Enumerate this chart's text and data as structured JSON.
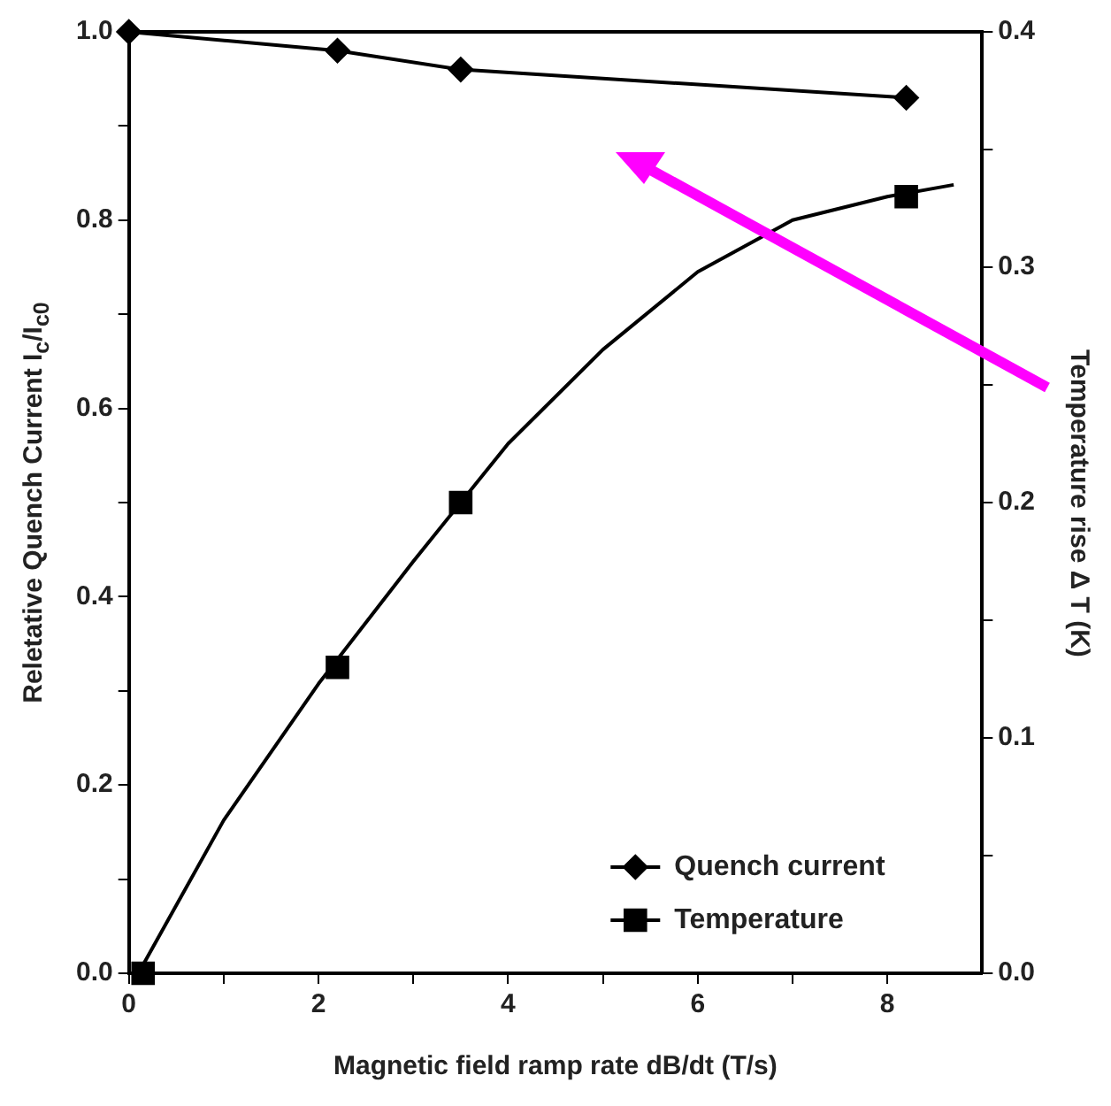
{
  "chart_data": {
    "type": "line",
    "xlabel": "Magnetic field ramp rate dB/dt (T/s)",
    "ylabel": "Reletative Quench Current I$_{c}$/I$_{c0}$",
    "y2label": "Temperature rise Δ T (K)",
    "xlim": [
      0,
      9
    ],
    "xticks": [
      0,
      {
        "value": 1,
        "label": null
      },
      2,
      {
        "value": 3,
        "label": null
      },
      4,
      {
        "value": 5,
        "label": null
      },
      6,
      {
        "value": 7,
        "label": null
      },
      8
    ],
    "ylim": [
      0,
      1
    ],
    "yticks": [
      "0.0",
      {
        "value": 0.1,
        "label": null
      },
      0.2,
      {
        "value": 0.3,
        "label": null
      },
      0.4,
      {
        "value": 0.5,
        "label": null
      },
      0.6,
      {
        "value": 0.7,
        "label": null
      },
      0.8,
      {
        "value": 0.9,
        "label": null
      },
      {
        "value": 1,
        "label": "1.0"
      }
    ],
    "y2lim": [
      0,
      0.4
    ],
    "y2ticks": [
      {
        "value": 0,
        "label": "0.0"
      },
      {
        "value": 0.05,
        "label": null
      },
      0.1,
      {
        "value": 0.15,
        "label": null
      },
      0.2,
      {
        "value": 0.25,
        "label": null
      },
      0.3,
      {
        "value": 0.35,
        "label": null
      },
      0.4
    ],
    "grid": false,
    "legend": "bottom right",
    "series": [
      {
        "name": "Quench current",
        "color": "#000000",
        "x": [
          0,
          2.2,
          3.5,
          8.2
        ],
        "values": [
          1.0,
          0.98,
          0.96,
          0.93
        ],
        "marker": "diamond",
        "line_style": "solid"
      },
      {
        "name": "Temperature",
        "color": "#000000",
        "axis": "y2",
        "type": "scatter",
        "x": [
          0.15,
          2.2,
          3.5,
          8.2
        ],
        "values": [
          0,
          0.13,
          0.2,
          0.33
        ],
        "marker": "square"
      },
      {
        "color": "#000000",
        "axis": "y2",
        "x": [
          0.1,
          1,
          2,
          3,
          4,
          5,
          6,
          7,
          8,
          8.7
        ],
        "values": [
          0,
          0.065,
          0.123,
          0.175,
          0.225,
          0.265,
          0.298,
          0.32,
          0.33,
          0.335
        ],
        "marker": "none",
        "line_style": "solid"
      }
    ]
  }
}
